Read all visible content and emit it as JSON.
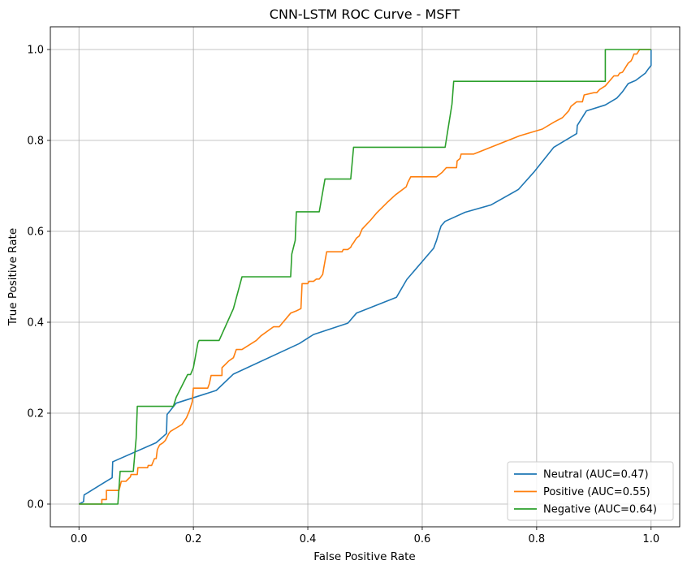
{
  "chart_data": {
    "type": "line",
    "title": "CNN-LSTM ROC Curve - MSFT",
    "xlabel": "False Positive Rate",
    "ylabel": "True Positive Rate",
    "xlim": [
      -0.05,
      1.05
    ],
    "ylim": [
      -0.05,
      1.05
    ],
    "xticks": [
      "0.0",
      "0.2",
      "0.4",
      "0.6",
      "0.8",
      "1.0"
    ],
    "yticks": [
      "0.0",
      "0.2",
      "0.4",
      "0.6",
      "0.8",
      "1.0"
    ],
    "grid": true,
    "legend_position": "lower-right",
    "series": [
      {
        "name": "Neutral (AUC=0.47)",
        "color": "#1f77b4",
        "x": [
          0.0,
          0.008,
          0.009,
          0.058,
          0.059,
          0.135,
          0.153,
          0.154,
          0.17,
          0.24,
          0.27,
          0.385,
          0.41,
          0.47,
          0.485,
          0.555,
          0.573,
          0.62,
          0.622,
          0.625,
          0.628,
          0.633,
          0.64,
          0.675,
          0.72,
          0.768,
          0.795,
          0.83,
          0.87,
          0.871,
          0.887,
          0.92,
          0.94,
          0.95,
          0.96,
          0.973,
          0.99,
          0.995,
          1.0,
          1.0
        ],
        "y": [
          0.0,
          0.005,
          0.02,
          0.058,
          0.093,
          0.135,
          0.155,
          0.197,
          0.222,
          0.25,
          0.286,
          0.353,
          0.373,
          0.398,
          0.42,
          0.455,
          0.494,
          0.563,
          0.57,
          0.58,
          0.593,
          0.612,
          0.622,
          0.642,
          0.658,
          0.692,
          0.73,
          0.785,
          0.815,
          0.833,
          0.865,
          0.878,
          0.893,
          0.907,
          0.925,
          0.932,
          0.948,
          0.957,
          0.965,
          1.0
        ]
      },
      {
        "name": "Positive (AUC=0.55)",
        "color": "#ff7f0e",
        "x": [
          0.0,
          0.04,
          0.04,
          0.048,
          0.048,
          0.07,
          0.074,
          0.082,
          0.09,
          0.091,
          0.102,
          0.103,
          0.12,
          0.121,
          0.127,
          0.132,
          0.135,
          0.137,
          0.141,
          0.147,
          0.151,
          0.157,
          0.16,
          0.18,
          0.188,
          0.193,
          0.198,
          0.2,
          0.225,
          0.228,
          0.231,
          0.25,
          0.25,
          0.258,
          0.262,
          0.27,
          0.275,
          0.285,
          0.31,
          0.318,
          0.34,
          0.347,
          0.35,
          0.37,
          0.38,
          0.388,
          0.39,
          0.4,
          0.402,
          0.41,
          0.415,
          0.42,
          0.426,
          0.428,
          0.433,
          0.46,
          0.462,
          0.47,
          0.475,
          0.477,
          0.48,
          0.485,
          0.49,
          0.495,
          0.51,
          0.52,
          0.54,
          0.553,
          0.572,
          0.575,
          0.58,
          0.625,
          0.635,
          0.642,
          0.66,
          0.661,
          0.666,
          0.668,
          0.69,
          0.7,
          0.72,
          0.77,
          0.81,
          0.83,
          0.845,
          0.856,
          0.86,
          0.87,
          0.88,
          0.883,
          0.9,
          0.905,
          0.91,
          0.92,
          0.935,
          0.942,
          0.945,
          0.95,
          0.955,
          0.96,
          0.965,
          0.967,
          0.97,
          0.975,
          0.98,
          1.0
        ],
        "y": [
          0.0,
          0.0,
          0.01,
          0.01,
          0.03,
          0.03,
          0.05,
          0.05,
          0.06,
          0.065,
          0.065,
          0.08,
          0.08,
          0.085,
          0.085,
          0.1,
          0.1,
          0.12,
          0.13,
          0.135,
          0.14,
          0.155,
          0.16,
          0.175,
          0.19,
          0.205,
          0.225,
          0.255,
          0.255,
          0.265,
          0.283,
          0.283,
          0.3,
          0.31,
          0.315,
          0.322,
          0.34,
          0.34,
          0.36,
          0.37,
          0.39,
          0.39,
          0.39,
          0.42,
          0.425,
          0.43,
          0.485,
          0.485,
          0.49,
          0.49,
          0.495,
          0.495,
          0.505,
          0.52,
          0.555,
          0.555,
          0.56,
          0.56,
          0.565,
          0.57,
          0.575,
          0.585,
          0.59,
          0.605,
          0.625,
          0.64,
          0.665,
          0.68,
          0.698,
          0.708,
          0.72,
          0.72,
          0.73,
          0.74,
          0.74,
          0.755,
          0.76,
          0.77,
          0.77,
          0.775,
          0.785,
          0.81,
          0.825,
          0.84,
          0.85,
          0.865,
          0.875,
          0.885,
          0.885,
          0.9,
          0.905,
          0.905,
          0.912,
          0.92,
          0.942,
          0.942,
          0.948,
          0.95,
          0.96,
          0.97,
          0.975,
          0.98,
          0.99,
          0.99,
          1.0,
          1.0
        ]
      },
      {
        "name": "Negative (AUC=0.64)",
        "color": "#2ca02c",
        "x": [
          0.0,
          0.068,
          0.072,
          0.095,
          0.1,
          0.102,
          0.165,
          0.17,
          0.19,
          0.195,
          0.2,
          0.208,
          0.21,
          0.245,
          0.27,
          0.285,
          0.37,
          0.372,
          0.378,
          0.38,
          0.42,
          0.43,
          0.432,
          0.475,
          0.48,
          0.64,
          0.652,
          0.655,
          0.92,
          0.92,
          1.0
        ],
        "y": [
          0.0,
          0.0,
          0.072,
          0.072,
          0.145,
          0.215,
          0.215,
          0.235,
          0.285,
          0.285,
          0.3,
          0.355,
          0.36,
          0.36,
          0.43,
          0.5,
          0.5,
          0.55,
          0.58,
          0.643,
          0.643,
          0.715,
          0.715,
          0.715,
          0.785,
          0.785,
          0.88,
          0.93,
          0.93,
          1.0,
          1.0
        ]
      }
    ]
  }
}
